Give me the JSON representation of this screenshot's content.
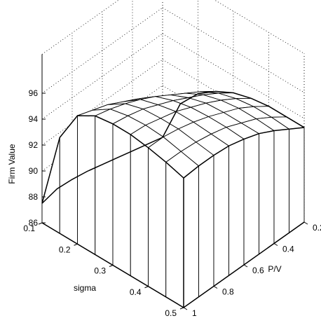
{
  "chart_data": {
    "type": "surface",
    "title": "",
    "xlabel": "sigma",
    "ylabel": "P/V",
    "zlabel": "Firm Value",
    "x_ticks": [
      "0.1",
      "0.2",
      "0.3",
      "0.4",
      "0.5"
    ],
    "y_ticks": [
      "0.2",
      "0.4",
      "0.6",
      "0.8",
      "1"
    ],
    "z_ticks": [
      "86",
      "88",
      "90",
      "92",
      "94",
      "96"
    ],
    "xlim": [
      0.1,
      0.5
    ],
    "ylim": [
      0.2,
      1.0
    ],
    "zlim": [
      86,
      96
    ],
    "grid": "dotted",
    "sigma": [
      0.1,
      0.15,
      0.2,
      0.25,
      0.3,
      0.35,
      0.4,
      0.45,
      0.5
    ],
    "pv": [
      1.0,
      0.9,
      0.8,
      0.7,
      0.6,
      0.5,
      0.4,
      0.3,
      0.2
    ],
    "z": [
      [
        87.5,
        87.8,
        87.7,
        87.5,
        87.2,
        86.9,
        86.6,
        86.3,
        86.0
      ],
      [
        93.4,
        92.9,
        92.4,
        91.9,
        91.4,
        90.9,
        90.4,
        89.9,
        89.4
      ],
      [
        95.9,
        95.5,
        95.1,
        94.5,
        93.9,
        93.2,
        92.5,
        91.8,
        91.0
      ],
      [
        96.7,
        96.4,
        96.0,
        95.5,
        94.9,
        94.2,
        93.5,
        92.8,
        92.0
      ],
      [
        96.9,
        96.7,
        96.4,
        95.9,
        95.4,
        94.8,
        94.2,
        93.5,
        92.7
      ],
      [
        96.9,
        96.8,
        96.5,
        96.2,
        95.7,
        95.2,
        94.6,
        93.9,
        93.1
      ],
      [
        96.7,
        96.7,
        96.5,
        96.2,
        95.8,
        95.3,
        94.8,
        94.1,
        93.3
      ],
      [
        96.4,
        96.4,
        96.3,
        96.1,
        95.8,
        95.3,
        94.8,
        94.1,
        93.3
      ],
      [
        96.0,
        96.1,
        96.1,
        96.0,
        95.7,
        95.3,
        94.7,
        94.0,
        93.3
      ]
    ]
  }
}
